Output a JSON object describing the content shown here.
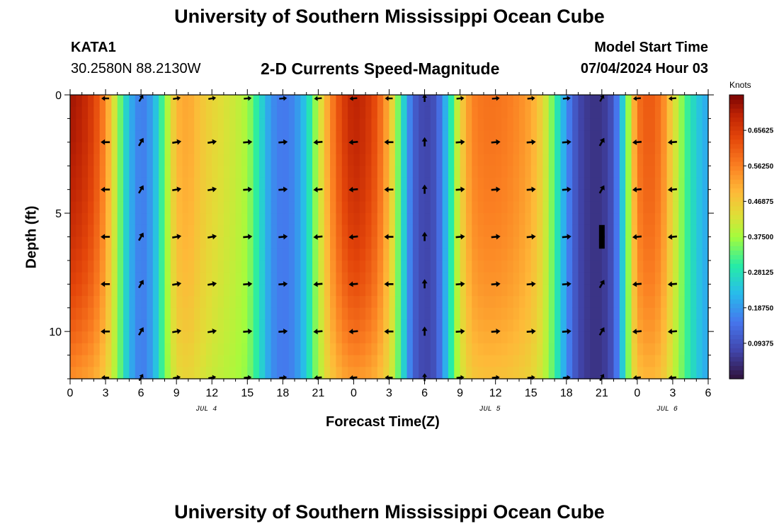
{
  "header": {
    "title": "University of Southern Mississippi Ocean Cube",
    "station": "KATA1",
    "coords": "30.2580N  88.2130W",
    "subtitle": "2-D Currents Speed-Magnitude",
    "model_start_label": "Model Start Time",
    "model_start": "07/04/2024 Hour 03"
  },
  "footer": {
    "title": "University of Southern Mississippi Ocean Cube"
  },
  "chart_data": {
    "type": "heatmap",
    "title": "2-D Currents Speed-Magnitude",
    "xlabel": "Forecast Time(Z)",
    "ylabel": "Depth (ft)",
    "x_hours_range": [
      0,
      54
    ],
    "y_range": [
      0,
      12
    ],
    "x_ticks": [
      {
        "hour": 0,
        "label": "0"
      },
      {
        "hour": 3,
        "label": "3"
      },
      {
        "hour": 6,
        "label": "6"
      },
      {
        "hour": 9,
        "label": "9"
      },
      {
        "hour": 12,
        "label": "12"
      },
      {
        "hour": 15,
        "label": "15"
      },
      {
        "hour": 18,
        "label": "18"
      },
      {
        "hour": 21,
        "label": "21"
      },
      {
        "hour": 24,
        "label": "0"
      },
      {
        "hour": 27,
        "label": "3"
      },
      {
        "hour": 30,
        "label": "6"
      },
      {
        "hour": 33,
        "label": "9"
      },
      {
        "hour": 36,
        "label": "12"
      },
      {
        "hour": 39,
        "label": "15"
      },
      {
        "hour": 42,
        "label": "18"
      },
      {
        "hour": 45,
        "label": "21"
      },
      {
        "hour": 48,
        "label": "0"
      },
      {
        "hour": 51,
        "label": "3"
      },
      {
        "hour": 54,
        "label": "6"
      }
    ],
    "date_labels": [
      {
        "hour": 12,
        "label": "JUL 4"
      },
      {
        "hour": 36,
        "label": "JUL 5"
      },
      {
        "hour": 51,
        "label": "JUL 6"
      }
    ],
    "y_ticks": [
      {
        "value": 0,
        "label": "0"
      },
      {
        "value": 5,
        "label": "5"
      },
      {
        "value": 10,
        "label": "10"
      }
    ],
    "colorbar": {
      "label": "Knots",
      "min": 0,
      "max": 0.75,
      "ticks": [
        "0.09375",
        "0.18750",
        "0.28125",
        "0.37500",
        "0.46875",
        "0.56250",
        "0.65625"
      ]
    },
    "hours": [
      0,
      1,
      2,
      3,
      4,
      5,
      6,
      7,
      8,
      9,
      10,
      11,
      12,
      13,
      14,
      15,
      16,
      17,
      18,
      19,
      20,
      21,
      22,
      23,
      24,
      25,
      26,
      27,
      28,
      29,
      30,
      31,
      32,
      33,
      34,
      35,
      36,
      37,
      38,
      39,
      40,
      41,
      42,
      43,
      44,
      45,
      46,
      47,
      48,
      49,
      50,
      51,
      52,
      53,
      54
    ],
    "surface_speed_knots": [
      0.72,
      0.7,
      0.65,
      0.55,
      0.38,
      0.22,
      0.15,
      0.2,
      0.35,
      0.5,
      0.52,
      0.48,
      0.45,
      0.43,
      0.41,
      0.38,
      0.28,
      0.18,
      0.15,
      0.17,
      0.25,
      0.4,
      0.55,
      0.65,
      0.7,
      0.68,
      0.62,
      0.5,
      0.3,
      0.12,
      0.07,
      0.1,
      0.25,
      0.45,
      0.56,
      0.58,
      0.58,
      0.57,
      0.55,
      0.52,
      0.45,
      0.32,
      0.18,
      0.08,
      0.05,
      0.05,
      0.1,
      0.3,
      0.58,
      0.62,
      0.58,
      0.45,
      0.33,
      0.25,
      0.2
    ],
    "depth_profile": {
      "depths_ft": [
        0,
        2,
        4,
        6,
        8,
        10,
        12
      ],
      "fast_flow_multiplier": [
        1.0,
        0.99,
        0.97,
        0.94,
        0.9,
        0.84,
        0.76
      ]
    },
    "arrow_rows_ft": [
      2,
      4,
      6,
      8,
      10
    ],
    "arrow_hours": [
      3,
      6,
      9,
      12,
      15,
      18,
      21,
      24,
      27,
      30,
      33,
      36,
      39,
      42,
      45,
      48,
      51
    ],
    "arrow_direction_deg": [
      180,
      60,
      10,
      10,
      5,
      5,
      185,
      185,
      180,
      90,
      5,
      5,
      5,
      5,
      60,
      185,
      185
    ]
  }
}
